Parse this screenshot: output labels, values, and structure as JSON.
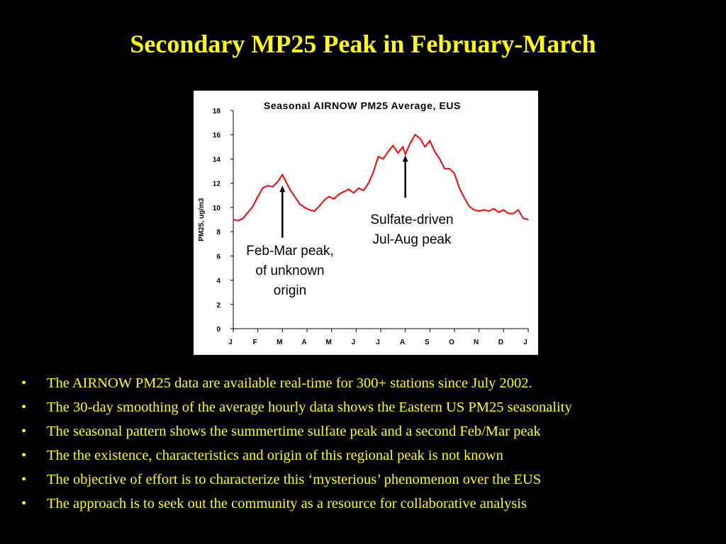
{
  "slide": {
    "title": "Secondary MP25 Peak in February-March",
    "bullets": [
      "The AIRNOW PM25 data are available real-time for 300+ stations since July 2002.",
      "The 30-day smoothing of the average hourly data shows the Eastern US PM25 seasonality",
      "The seasonal pattern shows the summertime sulfate peak and a second Feb/Mar peak",
      "The the existence, characteristics and origin of this regional peak is not known",
      "The objective of effort is to characterize this ‘mysterious’ phenomenon over the EUS",
      "The approach is to seek out the community as a resource for collaborative analysis"
    ],
    "bullet_symbol": "•"
  },
  "colors": {
    "background": "#000000",
    "title_text": "#ffff00",
    "bullet_text": "#ffff00",
    "chart_background": "#ffffff",
    "series_line": "#ff0000",
    "axis": "#000000"
  },
  "chart_data": {
    "type": "line",
    "title": "Seasonal AIRNOW PM25 Average, EUS",
    "xlabel": "",
    "ylabel": "PM25, ug/m3",
    "ylim": [
      0,
      18
    ],
    "yticks": [
      0,
      2,
      4,
      6,
      8,
      10,
      12,
      14,
      16,
      18
    ],
    "xlim": [
      0,
      12
    ],
    "xtick_labels": [
      "J",
      "F",
      "M",
      "A",
      "M",
      "J",
      "J",
      "A",
      "S",
      "O",
      "N",
      "D",
      "J"
    ],
    "grid": false,
    "series": [
      {
        "x": [
          0,
          0.2,
          0.4,
          0.6,
          0.8,
          1.0,
          1.2,
          1.4,
          1.6,
          1.8,
          2.0,
          2.1,
          2.3,
          2.5,
          2.7,
          2.9,
          3.1,
          3.3,
          3.5,
          3.7,
          3.9,
          4.1,
          4.3,
          4.5,
          4.7,
          4.9,
          5.1,
          5.3,
          5.5,
          5.7,
          5.9,
          6.1,
          6.3,
          6.5,
          6.7,
          6.9,
          7.0,
          7.2,
          7.4,
          7.6,
          7.8,
          8.0,
          8.2,
          8.4,
          8.6,
          8.8,
          9.0,
          9.2,
          9.4,
          9.6,
          9.8,
          10.0,
          10.2,
          10.4,
          10.6,
          10.8,
          11.0,
          11.2,
          11.4,
          11.6,
          11.8,
          12.0
        ],
        "y": [
          9.0,
          8.9,
          9.1,
          9.6,
          10.1,
          10.9,
          11.6,
          11.8,
          11.7,
          12.1,
          12.7,
          12.3,
          11.5,
          10.9,
          10.3,
          10.0,
          9.8,
          9.7,
          10.1,
          10.6,
          10.9,
          10.7,
          11.1,
          11.3,
          11.5,
          11.2,
          11.6,
          11.4,
          12.0,
          12.9,
          14.2,
          14.0,
          14.6,
          15.1,
          14.5,
          15.0,
          14.4,
          15.3,
          16.0,
          15.7,
          15.0,
          15.5,
          14.6,
          14.0,
          13.2,
          13.2,
          12.8,
          11.6,
          10.8,
          10.1,
          9.8,
          9.7,
          9.8,
          9.7,
          9.9,
          9.6,
          9.8,
          9.5,
          9.5,
          9.8,
          9.1,
          9.0
        ]
      }
    ],
    "annotations": [
      {
        "lines": [
          "Sulfate-driven",
          "Jul-Aug peak"
        ],
        "arrow_x": 7.0,
        "arrow_y_top": 14.3,
        "arrow_y_bottom": 10.8
      },
      {
        "lines": [
          "Feb-Mar peak,",
          "of unknown",
          "origin"
        ],
        "arrow_x": 2.0,
        "arrow_y_top": 11.8,
        "arrow_y_bottom": 7.5
      }
    ]
  }
}
